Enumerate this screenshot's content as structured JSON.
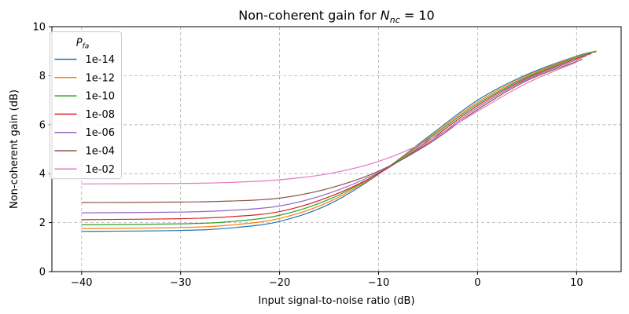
{
  "chart_data": {
    "type": "line",
    "title_prefix": "Non-coherent gain for ",
    "title_math": "N",
    "title_math_sub": "nc",
    "title_suffix": " = 10",
    "xlabel": "Input signal-to-noise ratio (dB)",
    "ylabel": "Non-coherent gain (dB)",
    "xlim": [
      -43,
      14.5
    ],
    "ylim": [
      0,
      10
    ],
    "xticks": [
      -40,
      -30,
      -20,
      -10,
      0,
      10
    ],
    "xtick_labels": [
      "−40",
      "−30",
      "−20",
      "−10",
      "0",
      "10"
    ],
    "yticks": [
      0,
      2,
      4,
      6,
      8,
      10
    ],
    "ytick_labels": [
      "0",
      "2",
      "4",
      "6",
      "8",
      "10"
    ],
    "grid": true,
    "legend_title": "P",
    "legend_title_sub": "fa",
    "legend_position": "top-left",
    "series": [
      {
        "name": "1e-14",
        "color": "#1f77b4",
        "x": [
          -40,
          -30,
          -25,
          -20,
          -15,
          -10,
          -5,
          0,
          5,
          10,
          12
        ],
        "y": [
          1.64,
          1.68,
          1.78,
          2.05,
          2.75,
          3.98,
          5.5,
          7.0,
          8.05,
          8.8,
          9.0
        ]
      },
      {
        "name": "1e-12",
        "color": "#ff7f0e",
        "x": [
          -40,
          -30,
          -25,
          -20,
          -15,
          -10,
          -5,
          0,
          5,
          10,
          12
        ],
        "y": [
          1.76,
          1.8,
          1.9,
          2.17,
          2.85,
          4.0,
          5.45,
          6.92,
          8.0,
          8.78,
          8.98
        ]
      },
      {
        "name": "1e-10",
        "color": "#2ca02c",
        "x": [
          -40,
          -30,
          -25,
          -20,
          -15,
          -10,
          -5,
          0,
          5,
          10,
          12
        ],
        "y": [
          1.91,
          1.95,
          2.04,
          2.3,
          2.95,
          4.02,
          5.4,
          6.85,
          7.95,
          8.75,
          9.0
        ]
      },
      {
        "name": "1e-08",
        "color": "#d62728",
        "x": [
          -40,
          -30,
          -25,
          -20,
          -15,
          -10,
          -5,
          0,
          5,
          10,
          11.5
        ],
        "y": [
          2.12,
          2.16,
          2.24,
          2.45,
          3.05,
          4.0,
          5.32,
          6.78,
          7.9,
          8.7,
          8.9
        ]
      },
      {
        "name": "1e-06",
        "color": "#9467bd",
        "x": [
          -40,
          -30,
          -25,
          -20,
          -15,
          -10,
          -5,
          0,
          5,
          10,
          11
        ],
        "y": [
          2.4,
          2.43,
          2.5,
          2.68,
          3.2,
          4.05,
          5.25,
          6.7,
          7.85,
          8.65,
          8.82
        ]
      },
      {
        "name": "1e-04",
        "color": "#8c564b",
        "x": [
          -40,
          -30,
          -25,
          -20,
          -15,
          -10,
          -5,
          0,
          5,
          10,
          10.5
        ],
        "y": [
          2.82,
          2.84,
          2.88,
          3.0,
          3.4,
          4.1,
          5.2,
          6.62,
          7.8,
          8.58,
          8.65
        ]
      },
      {
        "name": "1e-02",
        "color": "#e377c2",
        "x": [
          -40,
          -30,
          -25,
          -20,
          -15,
          -10,
          -5,
          0,
          5,
          10
        ],
        "y": [
          3.58,
          3.6,
          3.64,
          3.75,
          4.0,
          4.5,
          5.35,
          6.55,
          7.7,
          8.55
        ]
      }
    ]
  }
}
